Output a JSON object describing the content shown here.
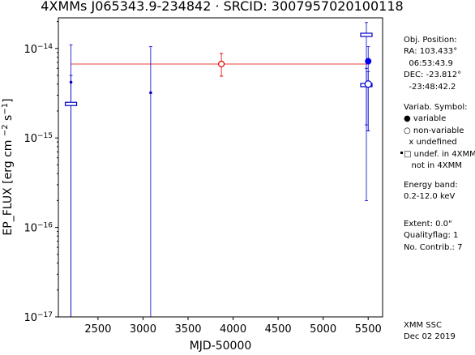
{
  "chart_data": {
    "type": "scatter",
    "title": "4XMMs J065343.9-234842  ·  SRCID: 3007957020100118",
    "xlabel": "MJD-50000",
    "ylabel": "EP_FLUX [erg cm ^{−2} s^{−1}]",
    "yscale": "log",
    "xlim": [
      2060,
      5660
    ],
    "ylim": [
      1e-17,
      2.2e-14
    ],
    "x_ticks": [
      2500,
      3000,
      3500,
      4000,
      4500,
      5000,
      5500
    ],
    "y_ticks": [
      {
        "value": 1e-17,
        "base": "10",
        "exp": "−17"
      },
      {
        "value": 1e-16,
        "base": "10",
        "exp": "−16"
      },
      {
        "value": 1e-15,
        "base": "10",
        "exp": "−15"
      },
      {
        "value": 1e-14,
        "base": "10",
        "exp": "−14"
      }
    ],
    "mean_flux": {
      "value": 6.7e-15,
      "err_low": 4.9e-15,
      "err_high": 8.8e-15,
      "x": 3870,
      "x_start": 2200,
      "x_end": 5520,
      "color": "#e00000"
    },
    "points": [
      {
        "x": 2200,
        "y": 4.2e-15,
        "ylo": 1e-17,
        "yhi": 5e-15,
        "symbol": "dot",
        "color": "#0000cc"
      },
      {
        "x": 2200,
        "y": 2.4e-15,
        "ylo": 1e-17,
        "yhi": 1.1e-14,
        "symbol": "square",
        "color": "#0000cc"
      },
      {
        "x": 3085,
        "y": 3.2e-15,
        "ylo": 1e-17,
        "yhi": 1.05e-14,
        "symbol": "dot",
        "color": "#0000cc"
      },
      {
        "x": 5480,
        "y": 1.42e-14,
        "ylo": 2e-16,
        "yhi": 1.95e-14,
        "symbol": "square",
        "color": "#0000cc"
      },
      {
        "x": 5480,
        "y": 3.9e-15,
        "ylo": 1.4e-15,
        "yhi": 6e-15,
        "symbol": "square",
        "color": "#0000cc"
      },
      {
        "x": 5500,
        "y": 7.2e-15,
        "ylo": 1.2e-15,
        "yhi": 1.05e-14,
        "symbol": "filled-circle",
        "color": "#0000ee"
      },
      {
        "x": 5500,
        "y": 4e-15,
        "ylo": 1.2e-15,
        "yhi": 5.5e-15,
        "symbol": "open-circle",
        "color": "#0000cc"
      }
    ],
    "grid": false,
    "legend": "right-side panel"
  },
  "info": {
    "position_title": "Obj. Position:",
    "ra": "RA: 103.433°",
    "ra_hms": "  06:53:43.9",
    "dec": "DEC: -23.812°",
    "dec_dms": "  -23:48:42.2",
    "variab_title": "Variab. Symbol:",
    "sym_variable": "● variable",
    "sym_nonvariable": "○ non-variable",
    "sym_undefined": "  x undefined",
    "sym_undef4xmm": "□ undef. in 4XMM",
    "sym_notin4xmm": "   not in 4XMM",
    "energy_title": "Energy band:",
    "energy_value": "0.2-12.0 keV",
    "extent": "Extent: 0.0\"",
    "qualityflag": "Qualityflag: 1",
    "ncontrib": "No. Contrib.: 7",
    "footer1": "XMM SSC",
    "footer2": "Dec 02 2019"
  }
}
